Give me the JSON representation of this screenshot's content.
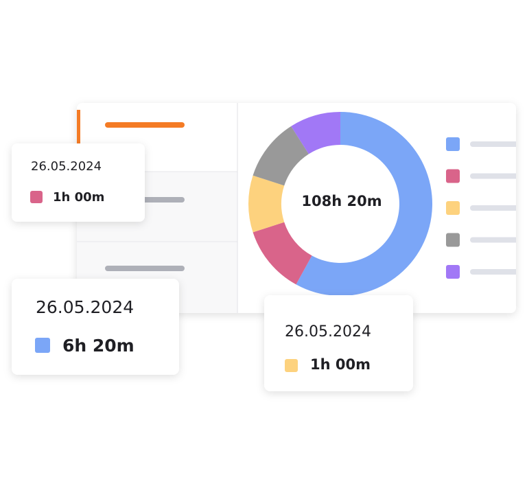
{
  "donut": {
    "center_label": "108h 20m",
    "segments": [
      {
        "color": "#7ba6f7",
        "value": 58
      },
      {
        "color": "#d9648a",
        "value": 12
      },
      {
        "color": "#fdd27e",
        "value": 10
      },
      {
        "color": "#999999",
        "value": 11
      },
      {
        "color": "#a178f6",
        "value": 9
      }
    ]
  },
  "cards": [
    {
      "date": "26.05.2024",
      "duration": "1h 00m",
      "color": "#d9648a"
    },
    {
      "date": "26.05.2024",
      "duration": "6h 20m",
      "color": "#7ba6f7"
    },
    {
      "date": "26.05.2024",
      "duration": "1h 00m",
      "color": "#fdd27e"
    }
  ]
}
